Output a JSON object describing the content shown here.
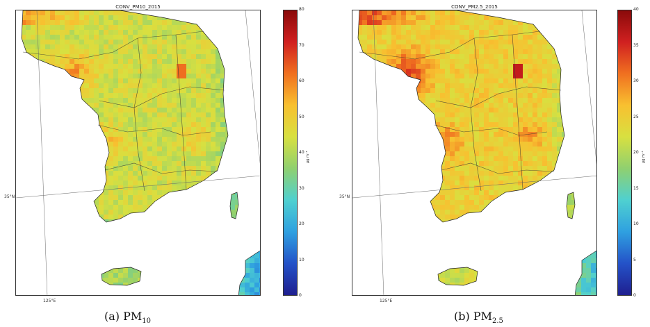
{
  "panels": [
    {
      "title": "CONV_PM10_2015",
      "caption_prefix": "(a) PM",
      "caption_sub": "10",
      "colorbar": {
        "unit": "μg m⁻³",
        "ticks": [
          "0",
          "10",
          "20",
          "30",
          "40",
          "50",
          "60",
          "70",
          "80"
        ],
        "min": 0,
        "max": 80
      },
      "mean_level": 0.55,
      "hot_level": 0.72
    },
    {
      "title": "CONV_PM2.5_2015",
      "caption_prefix": "(b) PM",
      "caption_sub": "2.5",
      "colorbar": {
        "unit": "μg m⁻³",
        "ticks": [
          "0",
          "5",
          "10",
          "15",
          "20",
          "25",
          "30",
          "35",
          "40"
        ],
        "min": 0,
        "max": 40
      },
      "mean_level": 0.62,
      "hot_level": 0.85
    }
  ],
  "lat_label": "35°N",
  "lon_label": "125°E",
  "colormap": [
    "#1f1f8f",
    "#2452c8",
    "#2fa0e0",
    "#4fd0d0",
    "#8fd070",
    "#d8e040",
    "#f8c030",
    "#f07020",
    "#d02020",
    "#8a0a0a"
  ]
}
